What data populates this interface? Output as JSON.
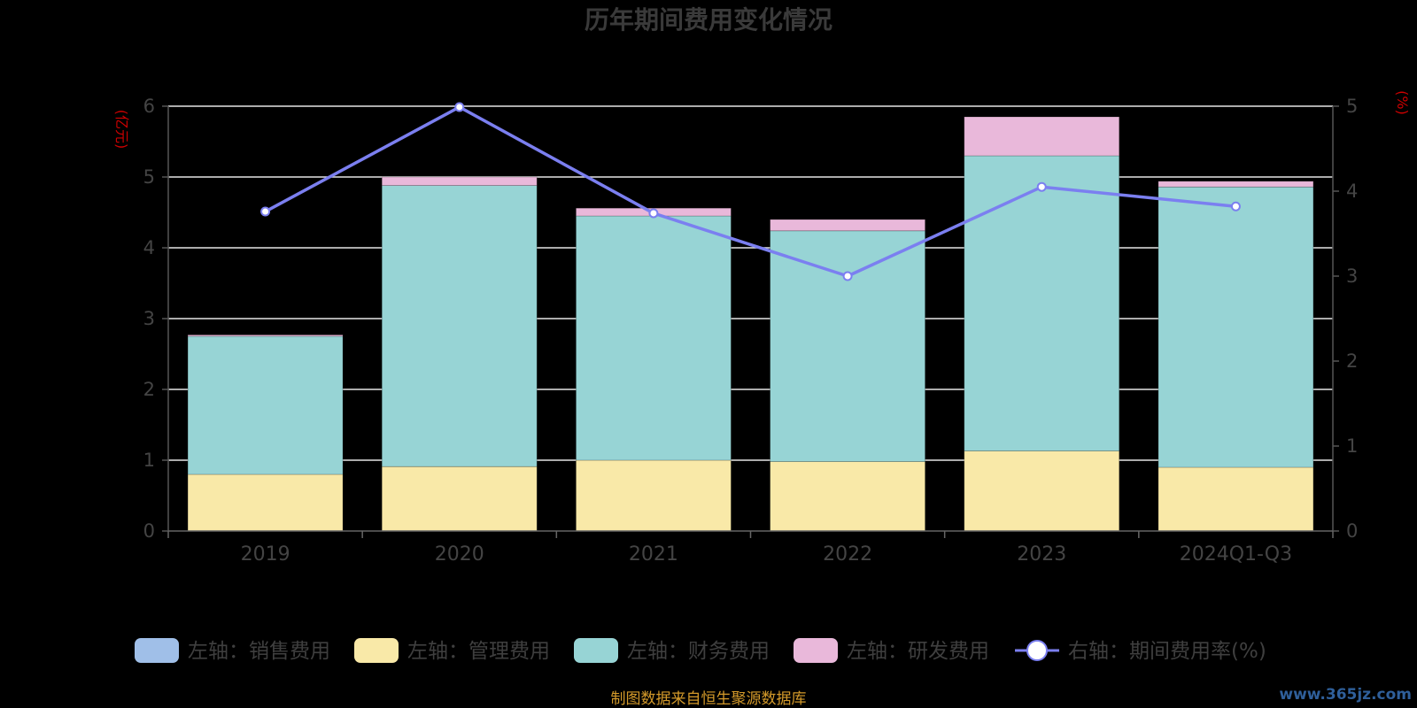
{
  "chart_data": {
    "type": "bar",
    "title": "历年期间费用变化情况",
    "categories": [
      "2019",
      "2020",
      "2021",
      "2022",
      "2023",
      "2024Q1-Q3"
    ],
    "left_axis": {
      "unit": "(亿元)",
      "ylim": [
        0,
        6
      ],
      "ticks": [
        "0",
        "1",
        "2",
        "3",
        "4",
        "5",
        "6"
      ]
    },
    "right_axis": {
      "unit": "(%)",
      "ylim": [
        0,
        5
      ],
      "ticks": [
        "0",
        "1",
        "2",
        "3",
        "4",
        "5"
      ]
    },
    "grid": true,
    "legend_position": "bottom",
    "series": [
      {
        "name": "左轴：销售费用",
        "type": "bar",
        "axis": "left",
        "color": "#a0bfe8",
        "values": [
          0,
          0,
          0,
          0,
          0,
          0
        ]
      },
      {
        "name": "左轴：管理费用",
        "type": "bar",
        "axis": "left",
        "color": "#f9e9a8",
        "values": [
          0.8,
          0.91,
          1.0,
          0.98,
          1.13,
          0.9
        ]
      },
      {
        "name": "左轴：财务费用",
        "type": "bar",
        "axis": "left",
        "color": "#97d4d5",
        "values": [
          1.95,
          3.97,
          3.45,
          3.26,
          4.17,
          3.96
        ]
      },
      {
        "name": "左轴：研发费用",
        "type": "bar",
        "axis": "left",
        "color": "#e9b8da",
        "values": [
          0.02,
          0.12,
          0.11,
          0.16,
          0.55,
          0.08
        ]
      },
      {
        "name": "右轴：期间费用率(%)",
        "type": "line",
        "axis": "right",
        "color": "#7b7ff0",
        "values": [
          3.76,
          4.99,
          3.74,
          3.0,
          4.05,
          3.82
        ]
      }
    ],
    "source": "制图数据来自恒生聚源数据库",
    "watermark": "www.365jz.com"
  }
}
